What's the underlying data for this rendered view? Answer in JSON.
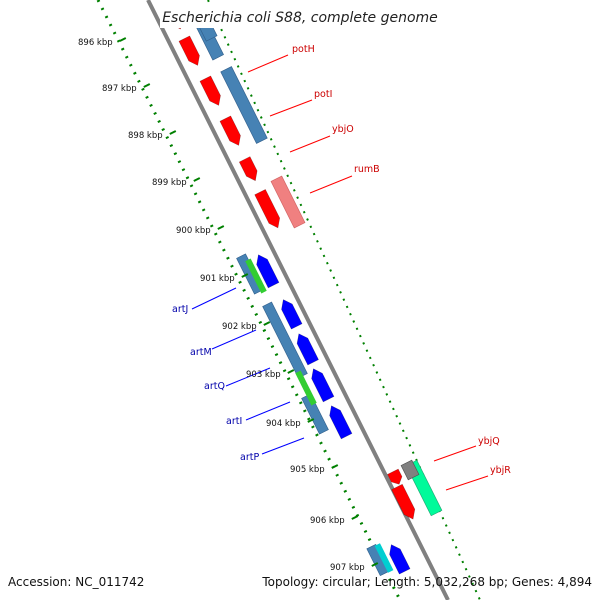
{
  "title": "Escherichia coli S88, complete genome",
  "ticks": [
    "896 kbp",
    "897 kbp",
    "898 kbp",
    "899 kbp",
    "900 kbp",
    "901 kbp",
    "902 kbp",
    "903 kbp",
    "904 kbp",
    "905 kbp",
    "906 kbp",
    "907 kbp"
  ],
  "genes_right": [
    "potH",
    "potI",
    "ybjO",
    "rumB",
    "ybjQ",
    "ybjR"
  ],
  "genes_left": [
    "artJ",
    "artM",
    "artQ",
    "artI",
    "artP"
  ],
  "footer": {
    "accession": "Accession: NC_011742",
    "summary": "Topology: circular; Length: 5,032,268 bp; Genes: 4,894"
  },
  "colors": {
    "forward_cds": "#ff0000",
    "forward_light": "#f08080",
    "reverse_cds": "#0000ff",
    "gene_block": "#4682b4",
    "green": "#32cd32",
    "seagreen": "#00fa9a",
    "gray": "#808080",
    "tick_green": "#008000",
    "backbone": "#808080"
  }
}
